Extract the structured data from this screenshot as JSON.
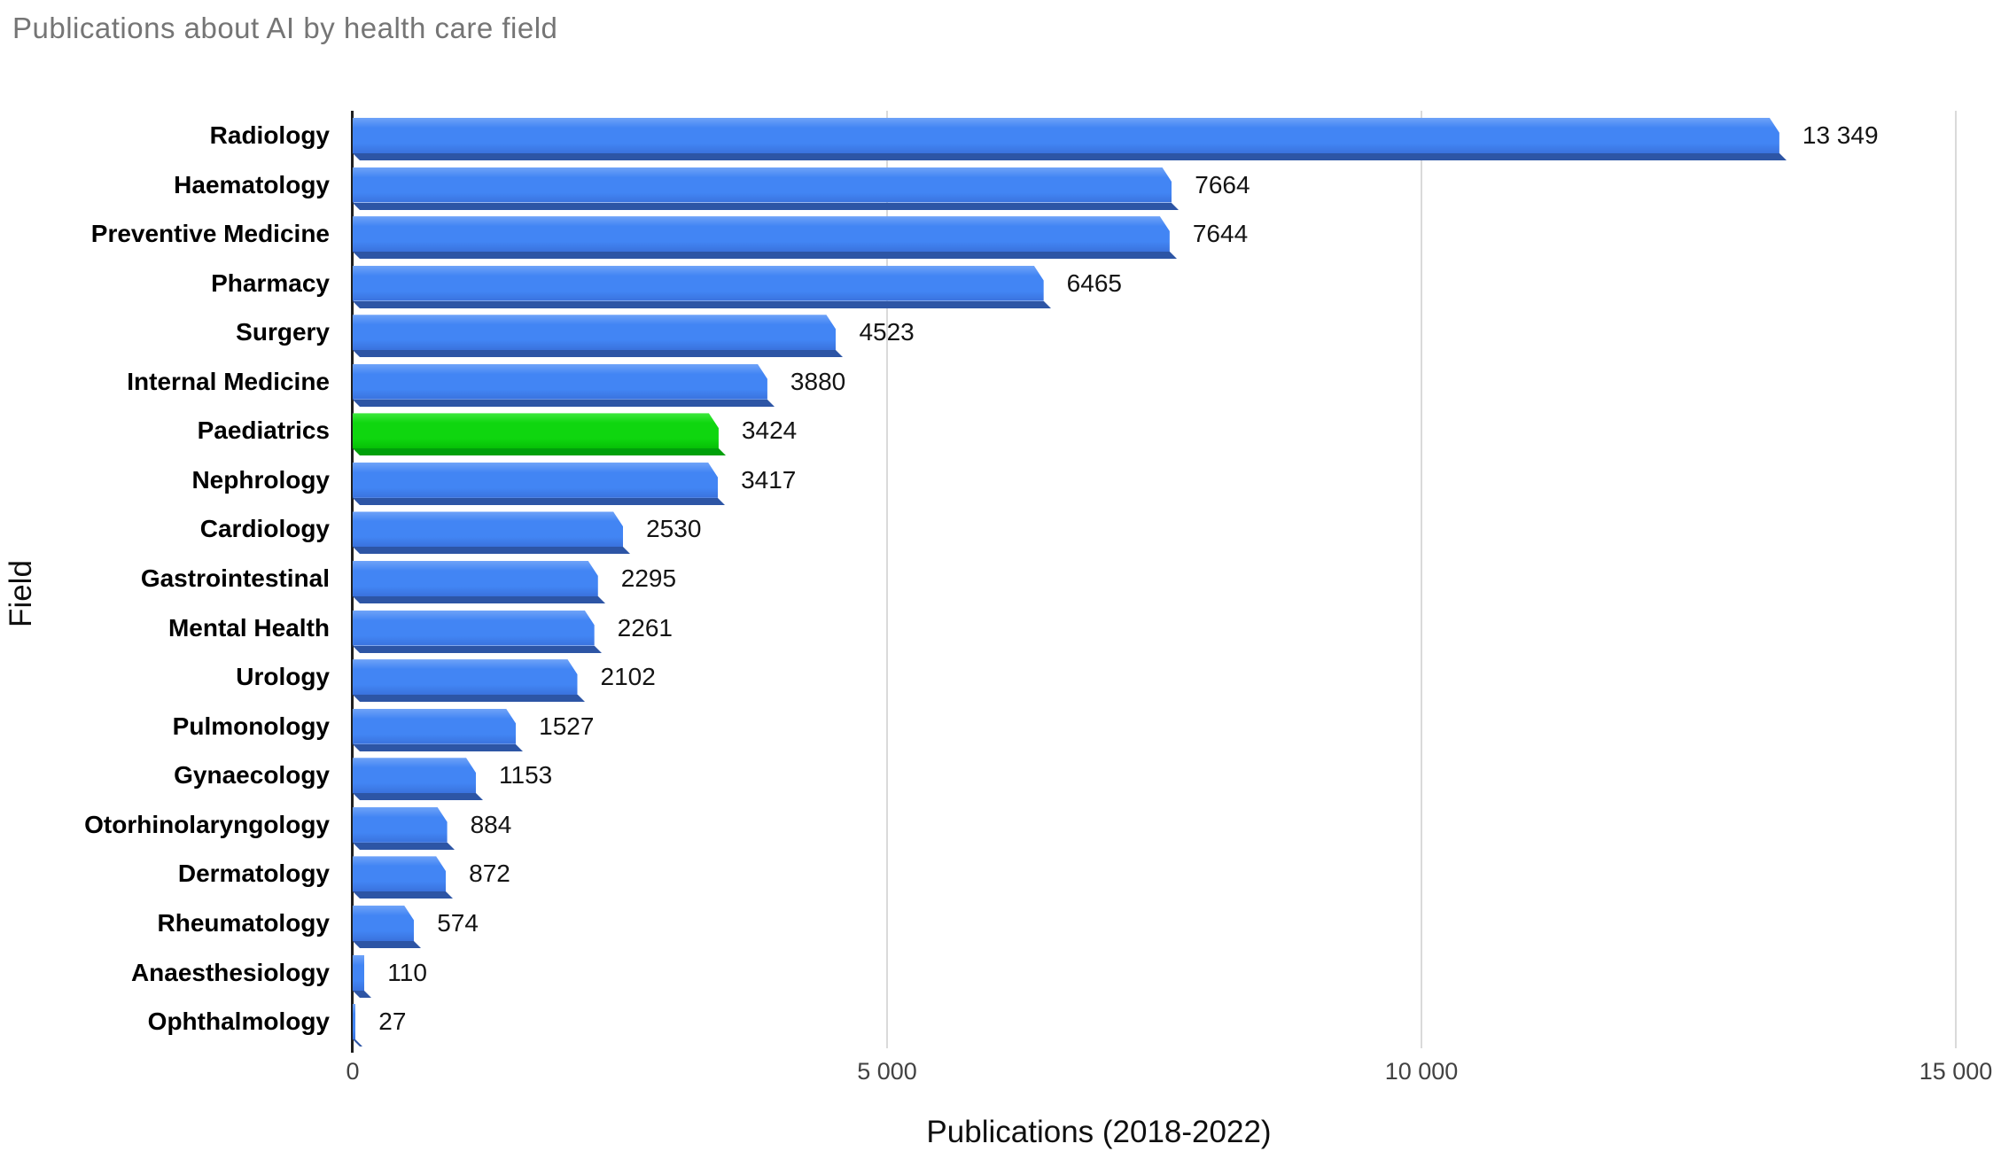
{
  "title": "Publications about AI by health care field",
  "chart_data": {
    "type": "bar",
    "orientation": "horizontal",
    "title": "Publications about AI by health care field",
    "xlabel": "Publications (2018-2022)",
    "ylabel": "Field",
    "xlim": [
      0,
      15000
    ],
    "grid": "vertical",
    "legend": "none",
    "xticks": [
      {
        "value": 0,
        "label": "0"
      },
      {
        "value": 5000,
        "label": "5 000"
      },
      {
        "value": 10000,
        "label": "10 000"
      },
      {
        "value": 15000,
        "label": "15 000"
      }
    ],
    "categories": [
      "Radiology",
      "Haematology",
      "Preventive Medicine",
      "Pharmacy",
      "Surgery",
      "Internal Medicine",
      "Paediatrics",
      "Nephrology",
      "Cardiology",
      "Gastrointestinal",
      "Mental Health",
      "Urology",
      "Pulmonology",
      "Gynaecology",
      "Otorhinolaryngology",
      "Dermatology",
      "Rheumatology",
      "Anaesthesiology",
      "Ophthalmology"
    ],
    "values": [
      13349,
      7664,
      7644,
      6465,
      4523,
      3880,
      3424,
      3417,
      2530,
      2295,
      2261,
      2102,
      1527,
      1153,
      884,
      872,
      574,
      110,
      27
    ],
    "value_labels": [
      "13 349",
      "7664",
      "7644",
      "6465",
      "4523",
      "3880",
      "3424",
      "3417",
      "2530",
      "2295",
      "2261",
      "2102",
      "1527",
      "1153",
      "884",
      "872",
      "574",
      "110",
      "27"
    ],
    "highlighted_category": "Paediatrics",
    "highlighted_index": 6,
    "bar_color": "#4285f4",
    "highlight_color": "#0fd60f"
  },
  "colors": {
    "background": "#ffffff",
    "title_text": "#757575",
    "axis_line": "#1f1f1f",
    "gridline": "#dadada",
    "tick_text": "#424242",
    "category_text": "#000000",
    "value_text": "#141414",
    "bar_blue_light": "#6fa3f8",
    "bar_blue_face": "#4285f4",
    "bar_blue_deep": "#3a72dd",
    "bar_blue_shadow": "#2d55a5",
    "bar_green_light": "#3fe93f",
    "bar_green_face": "#0fd60f",
    "bar_green_deep": "#06c006",
    "bar_green_shadow": "#00a00a"
  }
}
